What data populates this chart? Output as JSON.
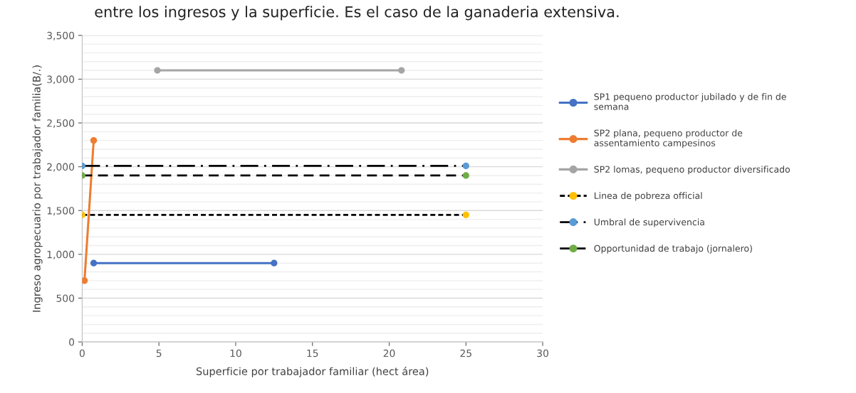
{
  "chart_data": {
    "type": "line",
    "title": "entre los ingresos y la superficie. Es el caso de la ganaderia extensiva.",
    "xlabel": "Superficie por trabajador familiar (hect área)",
    "ylabel": "Ingreso agropecuario por trabajador familia(B/.)",
    "xlim": [
      0,
      30
    ],
    "xticks": [
      0,
      5,
      10,
      15,
      20,
      25,
      30
    ],
    "ylim": [
      0,
      3500
    ],
    "yticks": [
      0,
      {
        "value": 100,
        "label": null
      },
      {
        "value": 200,
        "label": null
      },
      {
        "value": 300,
        "label": null
      },
      {
        "value": 400,
        "label": null
      },
      {
        "value": 500,
        "label": "500"
      },
      {
        "value": 600,
        "label": null
      },
      {
        "value": 700,
        "label": null
      },
      {
        "value": 800,
        "label": null
      },
      {
        "value": 900,
        "label": null
      },
      {
        "value": 1000,
        "label": "1,000"
      },
      {
        "value": 1100,
        "label": null
      },
      {
        "value": 1200,
        "label": null
      },
      {
        "value": 1300,
        "label": null
      },
      {
        "value": 1400,
        "label": null
      },
      {
        "value": 1500,
        "label": "1,500"
      },
      {
        "value": 1600,
        "label": null
      },
      {
        "value": 1700,
        "label": null
      },
      {
        "value": 1800,
        "label": null
      },
      {
        "value": 1900,
        "label": null
      },
      {
        "value": 2000,
        "label": "2,000"
      },
      {
        "value": 2100,
        "label": null
      },
      {
        "value": 2200,
        "label": null
      },
      {
        "value": 2300,
        "label": null
      },
      {
        "value": 2400,
        "label": null
      },
      {
        "value": 2500,
        "label": "2,500"
      },
      {
        "value": 2600,
        "label": null
      },
      {
        "value": 2700,
        "label": null
      },
      {
        "value": 2800,
        "label": null
      },
      {
        "value": 2900,
        "label": null
      },
      {
        "value": 3000,
        "label": "3,000"
      },
      {
        "value": 3100,
        "label": null
      },
      {
        "value": 3200,
        "label": null
      },
      {
        "value": 3300,
        "label": null
      },
      {
        "value": 3400,
        "label": null
      },
      {
        "value": 3500,
        "label": "3,500"
      }
    ],
    "grid": "y",
    "legend": "right",
    "marker": "circle",
    "series": [
      {
        "name": "SP1 pequeno productor jubilado y de fin de semana",
        "color": "#4472c4",
        "line_style": "solid",
        "x": [
          0.75,
          12.5
        ],
        "values": [
          900,
          900
        ]
      },
      {
        "name": "SP2 plana, pequeno productor de assentamiento campesinos",
        "color": "#ed7d31",
        "line_style": "solid",
        "x": [
          0.15,
          0.75
        ],
        "values": [
          700,
          2300
        ]
      },
      {
        "name": "SP2 lomas, pequeno productor diversificado",
        "color": "#a5a5a5",
        "line_style": "solid",
        "x": [
          4.9,
          20.8
        ],
        "values": [
          3100,
          3100
        ]
      },
      {
        "name": "Linea de pobreza official",
        "color": "#000000",
        "colors": [
          "#ffc000",
          "#ffc000"
        ],
        "line_style": "dotted",
        "x": [
          0,
          25
        ],
        "values": [
          1450,
          1450
        ]
      },
      {
        "name": "Umbral de supervivencia",
        "color": "#000000",
        "colors": [
          "#5b9bd5",
          "#5b9bd5"
        ],
        "line_style": "dashdot",
        "x": [
          0,
          25
        ],
        "values": [
          2010,
          2010
        ]
      },
      {
        "name": "Opportunidad de trabajo (jornalero)",
        "color": "#000000",
        "colors": [
          "#70ad47",
          "#70ad47"
        ],
        "line_style": "dashed",
        "x": [
          0,
          25
        ],
        "values": [
          1900,
          1900
        ]
      }
    ]
  }
}
